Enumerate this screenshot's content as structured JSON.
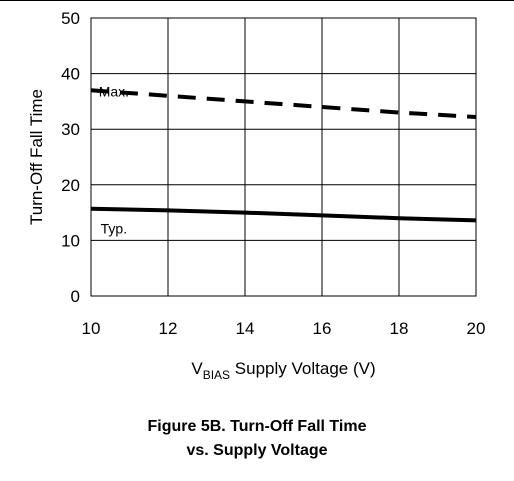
{
  "chart_data": {
    "type": "line",
    "title": "Figure 5B. Turn-Off Fall Time vs. Supply Voltage",
    "xlabel": "V_BIAS Supply Voltage (V)",
    "ylabel": "Turn-Off Fall Time",
    "xlim": [
      10,
      20
    ],
    "ylim": [
      0,
      50
    ],
    "xticks": [
      10,
      12,
      14,
      16,
      18,
      20
    ],
    "yticks": [
      0,
      10,
      20,
      30,
      40,
      50
    ],
    "grid": true,
    "series": [
      {
        "name": "Max.",
        "style": "dashed",
        "x": [
          10,
          12,
          14,
          16,
          18,
          20
        ],
        "y": [
          37,
          36,
          35,
          34,
          33,
          32.2
        ]
      },
      {
        "name": "Typ.",
        "style": "solid",
        "x": [
          10,
          12,
          14,
          16,
          18,
          20
        ],
        "y": [
          15.7,
          15.4,
          15.0,
          14.5,
          14.0,
          13.6
        ]
      }
    ]
  },
  "axis_text": {
    "ylabel": "Turn-Off Fall Time",
    "xlabel_v": "V",
    "xlabel_sub": "BIAS",
    "xlabel_rest": " Supply Voltage (V)"
  },
  "caption": {
    "line1": "Figure 5B. Turn-Off Fall Time",
    "line2": "vs. Supply Voltage"
  }
}
